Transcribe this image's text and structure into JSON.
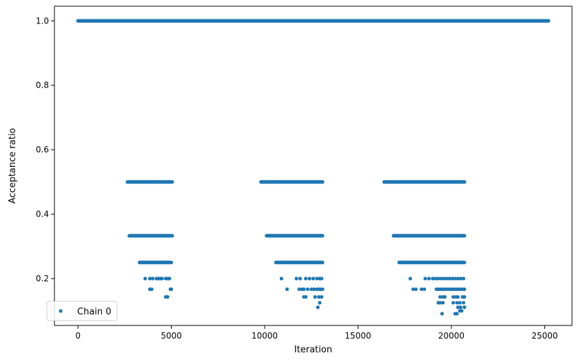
{
  "chart_data": {
    "type": "scatter",
    "xlabel": "Iteration",
    "ylabel": "Acceptance ratio",
    "xlim": [
      -1260,
      26460
    ],
    "ylim": [
      0.0545,
      1.0455
    ],
    "xticks": [
      0,
      5000,
      10000,
      15000,
      20000,
      25000
    ],
    "xtick_labels": [
      "0",
      "5000",
      "10000",
      "15000",
      "20000",
      "25000"
    ],
    "yticks": [
      0.2,
      0.4,
      0.6,
      0.8,
      1.0
    ],
    "ytick_labels": [
      "0.2",
      "0.4",
      "0.6",
      "0.8",
      "1.0"
    ],
    "grid": false,
    "legend_position": "lower-left",
    "series": [
      {
        "name": "Chain 0",
        "color": "#1f77b4",
        "marker": "circle",
        "bands": [
          {
            "y": 1.0,
            "segments": [
              [
                0,
                25200
              ]
            ]
          },
          {
            "y": 0.5,
            "segments": [
              [
                2650,
                5050
              ],
              [
                9800,
                13100
              ],
              [
                16400,
                20700
              ]
            ]
          },
          {
            "y": 0.333,
            "segments": [
              [
                2750,
                5050
              ],
              [
                10100,
                13100
              ],
              [
                16900,
                20700
              ]
            ]
          },
          {
            "y": 0.25,
            "segments": [
              [
                3300,
                5000
              ],
              [
                10600,
                13100
              ],
              [
                17200,
                20700
              ]
            ]
          }
        ],
        "points": [
          [
            3600,
            0.2
          ],
          [
            3850,
            0.2
          ],
          [
            4000,
            0.2
          ],
          [
            4200,
            0.2
          ],
          [
            4300,
            0.2
          ],
          [
            4400,
            0.2
          ],
          [
            4500,
            0.2
          ],
          [
            4700,
            0.2
          ],
          [
            4800,
            0.2
          ],
          [
            4900,
            0.2
          ],
          [
            3850,
            0.167
          ],
          [
            3950,
            0.167
          ],
          [
            4950,
            0.167
          ],
          [
            5000,
            0.167
          ],
          [
            4700,
            0.143
          ],
          [
            4800,
            0.143
          ],
          [
            10900,
            0.2
          ],
          [
            11700,
            0.2
          ],
          [
            11900,
            0.2
          ],
          [
            12200,
            0.2
          ],
          [
            12400,
            0.2
          ],
          [
            12600,
            0.2
          ],
          [
            12800,
            0.2
          ],
          [
            12950,
            0.2
          ],
          [
            13050,
            0.2
          ],
          [
            11200,
            0.167
          ],
          [
            11850,
            0.167
          ],
          [
            12000,
            0.167
          ],
          [
            12100,
            0.167
          ],
          [
            12300,
            0.167
          ],
          [
            12500,
            0.167
          ],
          [
            12650,
            0.167
          ],
          [
            12800,
            0.167
          ],
          [
            12900,
            0.167
          ],
          [
            13000,
            0.167
          ],
          [
            13100,
            0.167
          ],
          [
            12100,
            0.143
          ],
          [
            12200,
            0.143
          ],
          [
            12700,
            0.143
          ],
          [
            12900,
            0.143
          ],
          [
            13050,
            0.143
          ],
          [
            12950,
            0.125
          ],
          [
            12850,
            0.111
          ],
          [
            17800,
            0.2
          ],
          [
            18600,
            0.2
          ],
          [
            18800,
            0.2
          ],
          [
            19000,
            0.2
          ],
          [
            19150,
            0.2
          ],
          [
            19300,
            0.2
          ],
          [
            19450,
            0.2
          ],
          [
            19600,
            0.2
          ],
          [
            19750,
            0.2
          ],
          [
            19900,
            0.2
          ],
          [
            20050,
            0.2
          ],
          [
            20200,
            0.2
          ],
          [
            20350,
            0.2
          ],
          [
            20500,
            0.2
          ],
          [
            20650,
            0.2
          ],
          [
            17950,
            0.167
          ],
          [
            18100,
            0.167
          ],
          [
            18400,
            0.167
          ],
          [
            18550,
            0.167
          ],
          [
            19200,
            0.167
          ],
          [
            19300,
            0.167
          ],
          [
            19400,
            0.167
          ],
          [
            19500,
            0.167
          ],
          [
            19600,
            0.167
          ],
          [
            19700,
            0.167
          ],
          [
            19800,
            0.167
          ],
          [
            19900,
            0.167
          ],
          [
            20000,
            0.167
          ],
          [
            20100,
            0.167
          ],
          [
            20200,
            0.167
          ],
          [
            20300,
            0.167
          ],
          [
            20400,
            0.167
          ],
          [
            20500,
            0.167
          ],
          [
            20600,
            0.167
          ],
          [
            20700,
            0.167
          ],
          [
            19400,
            0.143
          ],
          [
            19550,
            0.143
          ],
          [
            19650,
            0.143
          ],
          [
            20100,
            0.143
          ],
          [
            20250,
            0.143
          ],
          [
            20350,
            0.143
          ],
          [
            20600,
            0.143
          ],
          [
            20700,
            0.143
          ],
          [
            19300,
            0.125
          ],
          [
            19400,
            0.125
          ],
          [
            19550,
            0.125
          ],
          [
            20100,
            0.125
          ],
          [
            20300,
            0.125
          ],
          [
            20450,
            0.125
          ],
          [
            20650,
            0.125
          ],
          [
            20350,
            0.111
          ],
          [
            20500,
            0.111
          ],
          [
            20700,
            0.111
          ],
          [
            20450,
            0.1
          ],
          [
            20550,
            0.1
          ],
          [
            19500,
            0.091
          ],
          [
            20200,
            0.091
          ],
          [
            20300,
            0.091
          ]
        ]
      }
    ]
  }
}
